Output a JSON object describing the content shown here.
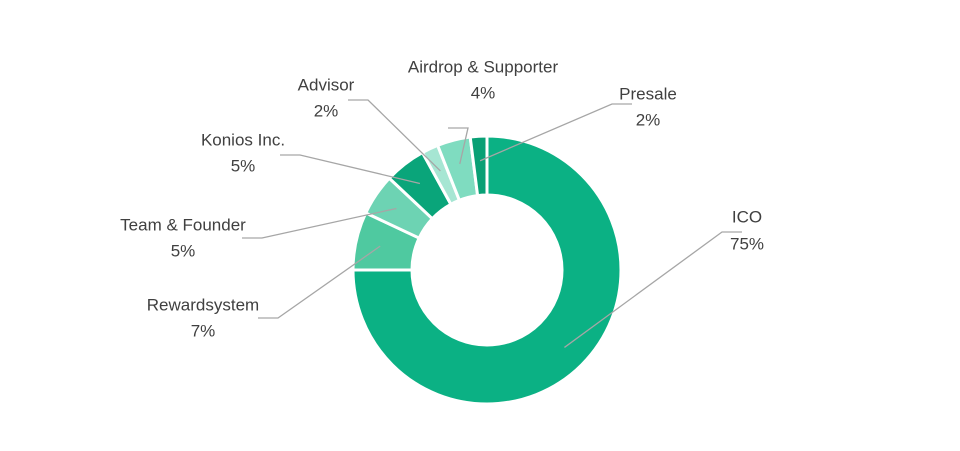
{
  "chart_data": {
    "type": "donut",
    "categories": [
      "ICO",
      "Rewardsystem",
      "Team & Founder",
      "Konios Inc.",
      "Advisor",
      "Airdrop & Supporter",
      "Presale"
    ],
    "values": [
      75,
      7,
      5,
      5,
      2,
      4,
      2
    ],
    "value_labels": [
      "75%",
      "7%",
      "5%",
      "5%",
      "2%",
      "4%",
      "2%"
    ],
    "colors": [
      "#0bb184",
      "#4fc9a0",
      "#6dd3b3",
      "#0aa57a",
      "#a6e6d3",
      "#7fdcc0",
      "#09a075"
    ]
  }
}
